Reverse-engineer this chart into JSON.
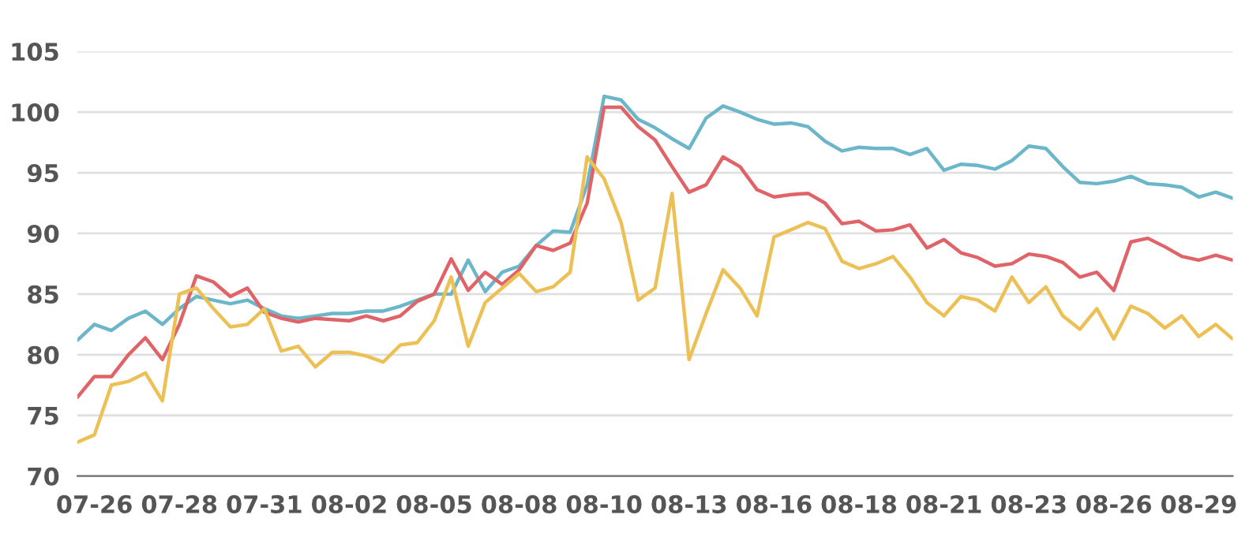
{
  "chart_data": {
    "type": "line",
    "categories": [
      null,
      "07-26",
      null,
      null,
      null,
      null,
      "07-28",
      null,
      null,
      null,
      null,
      "07-31",
      null,
      null,
      null,
      null,
      "08-02",
      null,
      null,
      null,
      null,
      "08-05",
      null,
      null,
      null,
      null,
      "08-08",
      null,
      null,
      null,
      null,
      "08-10",
      null,
      null,
      null,
      null,
      "08-13",
      null,
      null,
      null,
      null,
      "08-16",
      null,
      null,
      null,
      null,
      "08-18",
      null,
      null,
      null,
      null,
      "08-21",
      null,
      null,
      null,
      null,
      "08-23",
      null,
      null,
      null,
      null,
      "08-26",
      null,
      null,
      null,
      null,
      "08-29",
      null,
      null
    ],
    "series": [
      {
        "color": "#6bb7c9",
        "values": [
          81.2,
          82.5,
          82,
          83,
          83.6,
          82.5,
          83.8,
          84.8,
          84.5,
          84.2,
          84.5,
          83.8,
          83.2,
          83,
          83.2,
          83.4,
          83.4,
          83.6,
          83.6,
          84,
          84.5,
          85,
          85,
          87.8,
          85.2,
          86.8,
          87.3,
          89,
          90.2,
          90.1,
          94,
          101.3,
          101,
          99.4,
          98.7,
          97.8,
          97,
          99.5,
          100.5,
          100,
          99.4,
          99,
          99.1,
          98.8,
          97.6,
          96.8,
          97.1,
          97,
          97,
          96.5,
          97,
          95.2,
          95.7,
          95.6,
          95.3,
          96,
          97.2,
          97,
          95.5,
          94.2,
          94.1,
          94.3,
          94.7,
          94.1,
          94,
          93.8,
          93,
          93.4,
          92.9
        ]
      },
      {
        "color": "#e06467",
        "values": [
          76.5,
          78.2,
          78.2,
          80,
          81.4,
          79.6,
          82.5,
          86.5,
          86,
          84.8,
          85.5,
          83.5,
          83,
          82.7,
          83,
          82.9,
          82.8,
          83.2,
          82.8,
          83.2,
          84.4,
          85,
          87.9,
          85.3,
          86.8,
          85.8,
          87,
          89,
          88.6,
          89.2,
          92.5,
          100.4,
          100.4,
          98.8,
          97.7,
          95.5,
          93.4,
          94,
          96.3,
          95.5,
          93.6,
          93,
          93.2,
          93.3,
          92.5,
          90.8,
          91,
          90.2,
          90.3,
          90.7,
          88.8,
          89.5,
          88.4,
          88,
          87.3,
          87.5,
          88.3,
          88.1,
          87.6,
          86.4,
          86.8,
          85.3,
          89.3,
          89.6,
          88.9,
          88.1,
          87.8,
          88.2,
          87.8
        ]
      },
      {
        "color": "#ecc054",
        "values": [
          72.8,
          73.4,
          77.5,
          77.8,
          78.5,
          76.2,
          85,
          85.5,
          83.8,
          82.3,
          82.5,
          83.8,
          80.3,
          80.7,
          79,
          80.2,
          80.2,
          79.9,
          79.4,
          80.8,
          81,
          82.8,
          86.4,
          80.7,
          84.3,
          85.5,
          86.7,
          85.2,
          85.6,
          86.8,
          96.3,
          94.5,
          90.9,
          84.5,
          85.5,
          93.3,
          79.6,
          83.4,
          87,
          85.5,
          83.2,
          89.7,
          90.3,
          90.9,
          90.4,
          87.7,
          87.1,
          87.5,
          88.1,
          86.4,
          84.3,
          83.2,
          84.8,
          84.5,
          83.6,
          86.4,
          84.3,
          85.6,
          83.2,
          82.1,
          83.8,
          81.3,
          84,
          83.4,
          82.2,
          83.2,
          81.5,
          82.5,
          81.3
        ]
      }
    ],
    "ylim": [
      70,
      105
    ],
    "yticks": [
      70,
      75,
      80,
      85,
      90,
      95,
      100,
      105
    ],
    "grid": "y",
    "marker": "none",
    "line_style": "solid"
  }
}
